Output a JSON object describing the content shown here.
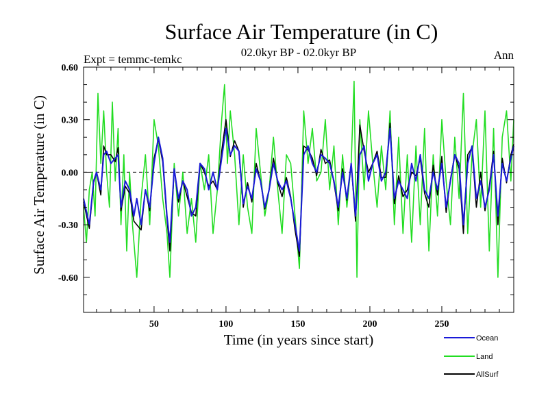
{
  "chart_data": {
    "type": "line",
    "title": "Surface Air Temperature (in C)",
    "left_label": "Expt = temmc-temkc",
    "subtitle": "02.0kyr BP - 02.0kyr BP",
    "right_label": "Ann",
    "xlabel": "Time (in years since start)",
    "ylabel": "Surface Air Temperature (in C)",
    "xlim": [
      1,
      300
    ],
    "ylim": [
      -0.8,
      0.6
    ],
    "x_ticks": [
      50,
      100,
      150,
      200,
      250
    ],
    "y_ticks": [
      0.6,
      0.3,
      0.0,
      -0.3,
      -0.6
    ],
    "y_tick_labels": [
      "0.60",
      "0.30",
      "0.00",
      "-0.30",
      "-0.60"
    ],
    "reference_line": 0.0,
    "colors": {
      "Ocean": "#1a1ad8",
      "Land": "#22dd22",
      "AllSurf": "#000000"
    },
    "series": [
      {
        "name": "Ocean",
        "x": [
          1,
          5,
          8,
          10,
          13,
          15,
          17,
          20,
          23,
          25,
          27,
          30,
          33,
          36,
          38,
          41,
          44,
          47,
          50,
          53,
          56,
          59,
          61,
          64,
          67,
          70,
          73,
          76,
          79,
          82,
          85,
          88,
          91,
          94,
          97,
          100,
          103,
          106,
          109,
          112,
          115,
          118,
          121,
          124,
          127,
          130,
          133,
          136,
          139,
          142,
          145,
          148,
          151,
          154,
          157,
          160,
          163,
          166,
          169,
          172,
          175,
          178,
          181,
          184,
          187,
          190,
          193,
          196,
          199,
          202,
          205,
          208,
          211,
          214,
          217,
          220,
          223,
          226,
          229,
          232,
          235,
          238,
          241,
          244,
          247,
          250,
          253,
          256,
          259,
          262,
          265,
          268,
          271,
          274,
          277,
          280,
          283,
          286,
          289,
          292,
          295,
          298,
          300
        ],
        "values": [
          -0.15,
          -0.3,
          -0.05,
          0.0,
          -0.1,
          0.1,
          0.12,
          0.05,
          0.08,
          0.1,
          -0.2,
          -0.05,
          -0.1,
          -0.25,
          -0.15,
          -0.3,
          -0.1,
          -0.2,
          0.05,
          0.2,
          0.08,
          -0.25,
          -0.4,
          0.02,
          -0.15,
          -0.05,
          -0.1,
          -0.25,
          -0.2,
          0.05,
          0.02,
          -0.1,
          0.0,
          -0.1,
          0.08,
          0.25,
          0.1,
          0.15,
          0.12,
          -0.18,
          -0.08,
          -0.15,
          0.02,
          -0.05,
          -0.2,
          -0.1,
          0.05,
          -0.05,
          -0.1,
          -0.05,
          -0.15,
          -0.3,
          -0.45,
          0.1,
          0.15,
          0.05,
          0.0,
          0.1,
          0.08,
          0.05,
          -0.05,
          -0.2,
          0.0,
          -0.15,
          0.05,
          -0.25,
          0.1,
          0.15,
          -0.05,
          0.05,
          0.1,
          -0.05,
          0.0,
          0.25,
          -0.15,
          -0.05,
          -0.1,
          -0.15,
          0.05,
          -0.05,
          0.1,
          -0.1,
          -0.15,
          0.0,
          -0.1,
          0.05,
          -0.2,
          -0.05,
          0.1,
          0.05,
          -0.3,
          0.05,
          0.15,
          -0.15,
          -0.05,
          -0.2,
          -0.1,
          0.1,
          -0.25,
          0.05,
          -0.05,
          0.08,
          0.15
        ]
      },
      {
        "name": "Land",
        "x": [
          1,
          3,
          5,
          7,
          9,
          11,
          13,
          15,
          17,
          19,
          21,
          23,
          25,
          27,
          29,
          31,
          33,
          35,
          38,
          41,
          44,
          47,
          50,
          53,
          56,
          59,
          61,
          64,
          67,
          70,
          73,
          76,
          79,
          82,
          85,
          88,
          91,
          94,
          97,
          99,
          101,
          103,
          106,
          109,
          112,
          115,
          118,
          121,
          124,
          127,
          130,
          133,
          136,
          139,
          142,
          145,
          148,
          151,
          154,
          157,
          160,
          163,
          166,
          169,
          172,
          175,
          178,
          181,
          184,
          187,
          189,
          191,
          193,
          196,
          199,
          202,
          205,
          208,
          211,
          214,
          217,
          220,
          223,
          226,
          229,
          232,
          235,
          238,
          241,
          244,
          247,
          250,
          253,
          256,
          259,
          262,
          265,
          268,
          271,
          274,
          277,
          280,
          283,
          286,
          289,
          292,
          295,
          298,
          300
        ],
        "values": [
          -0.2,
          -0.4,
          -0.1,
          0.0,
          -0.25,
          0.45,
          0.05,
          0.35,
          0.0,
          -0.2,
          0.4,
          -0.05,
          0.25,
          -0.3,
          0.1,
          -0.45,
          0.0,
          -0.3,
          -0.6,
          -0.15,
          0.1,
          -0.3,
          0.3,
          0.15,
          -0.15,
          -0.35,
          -0.6,
          0.05,
          -0.25,
          0.0,
          -0.35,
          -0.15,
          -0.4,
          0.05,
          -0.1,
          0.1,
          -0.35,
          -0.1,
          0.3,
          0.5,
          0.05,
          0.35,
          0.1,
          -0.3,
          0.1,
          -0.2,
          -0.35,
          0.25,
          0.0,
          -0.25,
          -0.1,
          0.2,
          -0.1,
          -0.35,
          0.1,
          0.05,
          -0.25,
          -0.55,
          0.35,
          0.05,
          0.25,
          -0.05,
          0.0,
          0.3,
          -0.1,
          0.15,
          -0.3,
          0.1,
          -0.2,
          0.05,
          0.52,
          -0.6,
          0.3,
          -0.1,
          0.35,
          0.05,
          -0.2,
          0.15,
          -0.1,
          0.35,
          -0.3,
          0.2,
          -0.35,
          0.1,
          -0.4,
          0.15,
          -0.3,
          0.25,
          -0.45,
          0.1,
          -0.25,
          0.3,
          -0.05,
          -0.3,
          0.2,
          -0.15,
          0.45,
          -0.35,
          0.1,
          0.3,
          -0.2,
          0.35,
          -0.45,
          0.25,
          -0.6,
          0.2,
          0.35,
          -0.05,
          0.3
        ]
      },
      {
        "name": "AllSurf",
        "x": [
          1,
          5,
          8,
          10,
          13,
          15,
          17,
          20,
          23,
          25,
          27,
          30,
          33,
          36,
          38,
          41,
          44,
          47,
          50,
          53,
          56,
          59,
          61,
          64,
          67,
          70,
          73,
          76,
          79,
          82,
          85,
          88,
          91,
          94,
          97,
          100,
          103,
          106,
          109,
          112,
          115,
          118,
          121,
          124,
          127,
          130,
          133,
          136,
          139,
          142,
          145,
          148,
          151,
          154,
          157,
          160,
          163,
          166,
          169,
          172,
          175,
          178,
          181,
          184,
          187,
          190,
          193,
          196,
          199,
          202,
          205,
          208,
          211,
          214,
          217,
          220,
          223,
          226,
          229,
          232,
          235,
          238,
          241,
          244,
          247,
          250,
          253,
          256,
          259,
          262,
          265,
          268,
          271,
          274,
          277,
          280,
          283,
          286,
          289,
          292,
          295,
          298,
          300
        ],
        "values": [
          -0.17,
          -0.32,
          -0.06,
          0.0,
          -0.13,
          0.15,
          0.1,
          0.1,
          0.06,
          0.14,
          -0.22,
          -0.08,
          -0.12,
          -0.28,
          -0.3,
          -0.33,
          -0.1,
          -0.22,
          0.08,
          0.19,
          0.06,
          -0.27,
          -0.45,
          0.02,
          -0.17,
          -0.05,
          -0.14,
          -0.23,
          -0.25,
          0.05,
          0.0,
          -0.08,
          -0.05,
          -0.1,
          0.12,
          0.3,
          0.09,
          0.18,
          0.12,
          -0.2,
          -0.06,
          -0.17,
          0.05,
          -0.05,
          -0.21,
          -0.1,
          0.08,
          -0.06,
          -0.14,
          -0.03,
          -0.14,
          -0.33,
          -0.48,
          0.15,
          0.13,
          0.08,
          -0.02,
          0.13,
          0.05,
          0.07,
          -0.06,
          -0.22,
          0.02,
          -0.16,
          0.05,
          -0.28,
          0.27,
          0.12,
          0.0,
          0.05,
          0.12,
          -0.03,
          -0.03,
          0.28,
          -0.18,
          -0.02,
          -0.14,
          -0.1,
          0.0,
          -0.02,
          0.08,
          -0.12,
          -0.2,
          0.04,
          -0.13,
          0.09,
          -0.23,
          -0.04,
          0.1,
          0.02,
          -0.35,
          0.1,
          0.14,
          -0.2,
          0.0,
          -0.22,
          -0.08,
          0.12,
          -0.3,
          0.08,
          -0.06,
          0.1,
          0.16
        ]
      }
    ]
  }
}
